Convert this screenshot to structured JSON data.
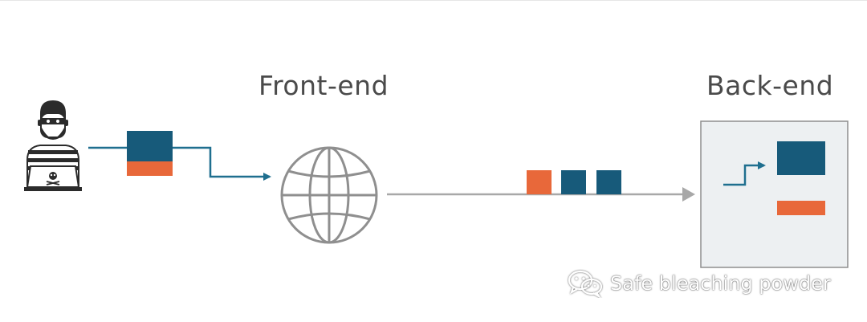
{
  "labels": {
    "front_end": "Front-end",
    "back_end": "Back-end"
  },
  "watermark": {
    "text": "Safe bleaching powder",
    "icon": "wechat-icon"
  },
  "icons": {
    "attacker": "hacker-icon",
    "network": "globe-icon",
    "server": "backend-panel"
  },
  "colors": {
    "blue": "#175a7a",
    "orange": "#e8683a",
    "arrow_blue": "#1f6f8f",
    "arrow_gray": "#a8a8a8",
    "globe_gray": "#8f8f8f",
    "panel_bg": "#edf0f2",
    "panel_border": "#8e8e8e",
    "label_text": "#4a4a4a"
  }
}
